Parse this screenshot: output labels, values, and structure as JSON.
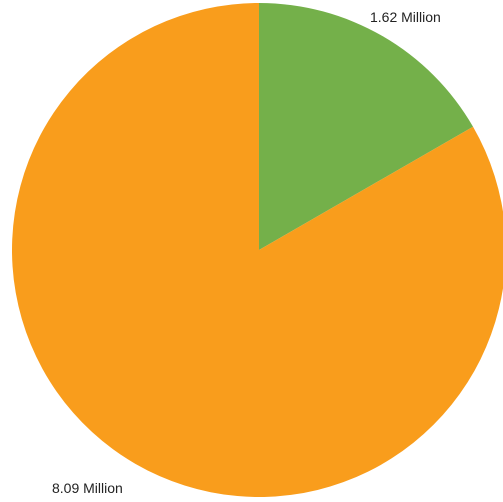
{
  "chart_data": {
    "type": "pie",
    "slices": [
      {
        "value": 1.62,
        "label": "1.62 Million",
        "color": "#74b04a"
      },
      {
        "value": 8.09,
        "label": "8.09 Million",
        "color": "#f99d1c"
      }
    ],
    "start_angle_deg": 0,
    "direction": "clockwise",
    "background_color": "#ffffff"
  }
}
